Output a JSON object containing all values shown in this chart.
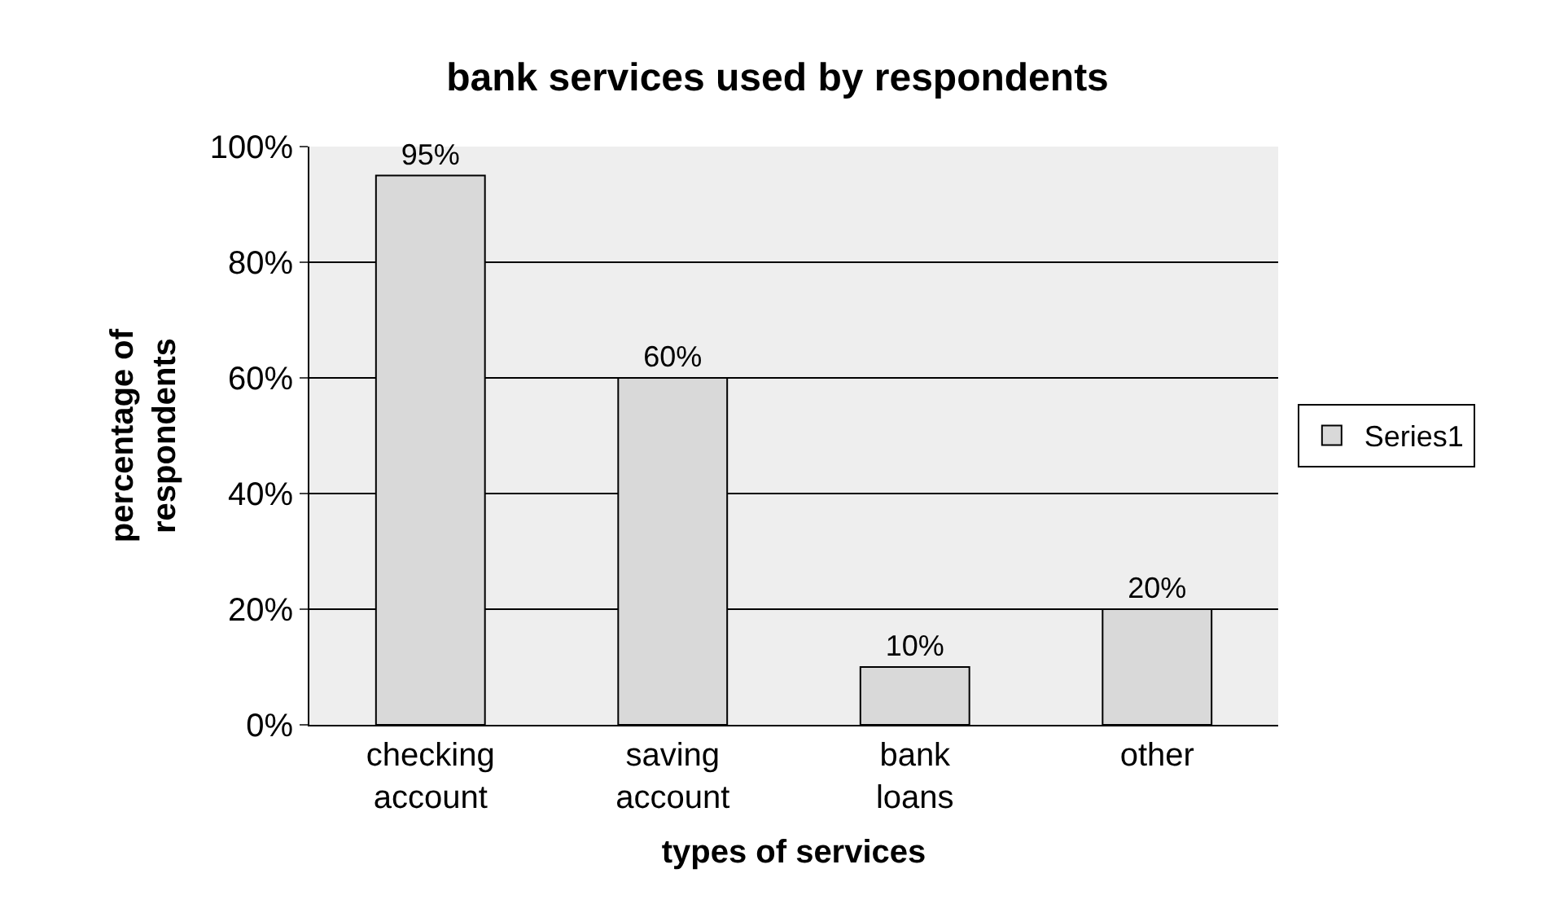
{
  "chart_data": {
    "type": "bar",
    "title": "bank services used by respondents",
    "xlabel": "types of services",
    "ylabel": "percentage of respondents",
    "categories": [
      "checking account",
      "saving account",
      "bank loans",
      "other"
    ],
    "series": [
      {
        "name": "Series1",
        "color": "#d9d9d9",
        "values": [
          95,
          60,
          10,
          20
        ],
        "value_labels": [
          "95%",
          "60%",
          "10%",
          "20%"
        ]
      }
    ],
    "ylim": [
      0,
      100
    ],
    "yticks": [
      {
        "value": 0,
        "label": "0%"
      },
      {
        "value": 20,
        "label": "20%"
      },
      {
        "value": 40,
        "label": "40%"
      },
      {
        "value": 60,
        "label": "60%"
      },
      {
        "value": 80,
        "label": "80%"
      },
      {
        "value": 100,
        "label": "100%"
      }
    ],
    "grid": "y",
    "legend": "right"
  }
}
